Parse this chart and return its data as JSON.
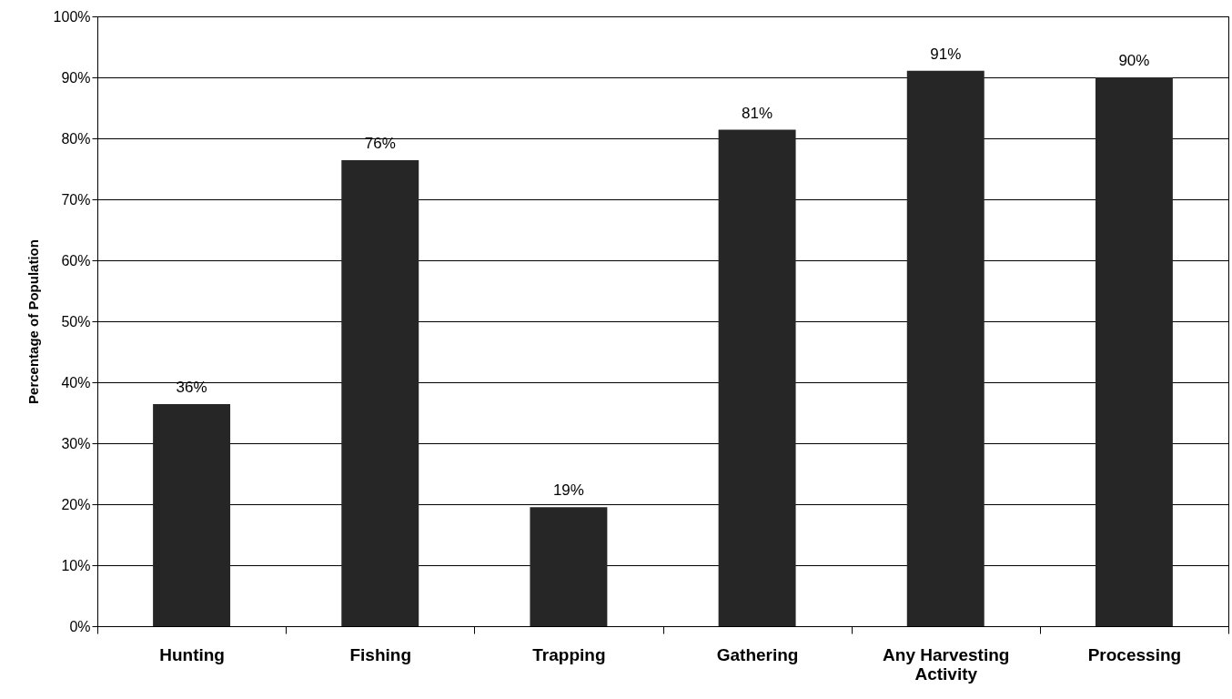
{
  "chart_data": {
    "type": "bar",
    "ylabel": "Percentage of Population",
    "categories": [
      "Hunting",
      "Fishing",
      "Trapping",
      "Gathering",
      "Any Harvesting Activity",
      "Processing"
    ],
    "values": [
      36.4,
      76.4,
      19.5,
      81.4,
      91.1,
      90.0
    ],
    "value_labels": [
      "36%",
      "76%",
      "19%",
      "81%",
      "91%",
      "90%"
    ],
    "color": "#262626",
    "ylim": [
      0,
      100
    ],
    "yticks": [
      {
        "value": 0,
        "label": "0%"
      },
      {
        "value": 10,
        "label": "10%"
      },
      {
        "value": 20,
        "label": "20%"
      },
      {
        "value": 30,
        "label": "30%"
      },
      {
        "value": 40,
        "label": "40%"
      },
      {
        "value": 50,
        "label": "50%"
      },
      {
        "value": 60,
        "label": "60%"
      },
      {
        "value": 70,
        "label": "70%"
      },
      {
        "value": 80,
        "label": "80%"
      },
      {
        "value": 90,
        "label": "90%"
      },
      {
        "value": 100,
        "label": "100%"
      }
    ],
    "grid": "y"
  }
}
